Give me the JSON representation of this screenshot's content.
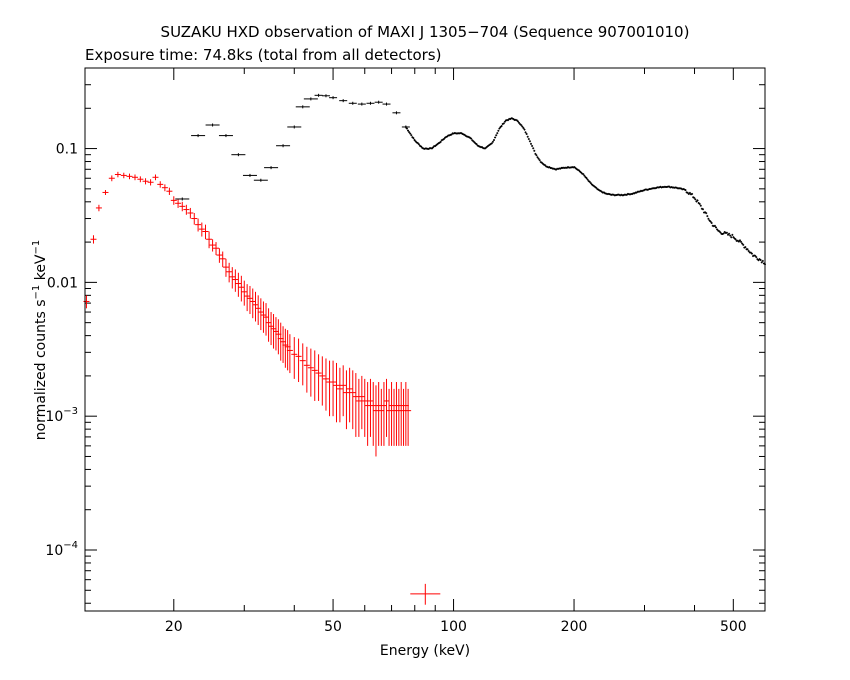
{
  "chart_data": {
    "type": "scatter",
    "title": "SUZAKU HXD observation of MAXI J 1305−704 (Sequence 907001010)",
    "subtitle": "Exposure time: 74.8ks (total from all detectors)",
    "xlabel": "Energy (keV)",
    "ylabel": {
      "text1": "normalized counts s",
      "sup1": "−1",
      "text2": " keV",
      "sup2": "−1"
    },
    "xscale": "log",
    "yscale": "log",
    "xlim": [
      12,
      600
    ],
    "ylim": [
      3.5e-05,
      0.4
    ],
    "x_ticks": [
      {
        "value": 20,
        "label": "20"
      },
      {
        "value": 50,
        "label": "50"
      },
      {
        "value": 100,
        "label": "100"
      },
      {
        "value": 200,
        "label": "200"
      },
      {
        "value": 500,
        "label": "500"
      }
    ],
    "y_ticks": [
      {
        "value": 0.1,
        "label": "0.1",
        "base": "",
        "exp": ""
      },
      {
        "value": 0.01,
        "label": "0.01",
        "base": "",
        "exp": ""
      },
      {
        "value": 0.001,
        "label": "",
        "base": "10",
        "exp": "−3"
      },
      {
        "value": 0.0001,
        "label": "",
        "base": "10",
        "exp": "−4"
      }
    ],
    "series": [
      {
        "color": "#ff0000",
        "points": [
          [
            12.1,
            0.0072,
            0.0008
          ],
          [
            12.6,
            0.021,
            0.0015
          ],
          [
            13.0,
            0.036,
            0.002
          ],
          [
            13.5,
            0.047,
            0.002
          ],
          [
            14.0,
            0.06,
            0.003
          ],
          [
            14.5,
            0.064,
            0.003
          ],
          [
            15.0,
            0.063,
            0.003
          ],
          [
            15.5,
            0.062,
            0.003
          ],
          [
            16.0,
            0.061,
            0.003
          ],
          [
            16.5,
            0.059,
            0.003
          ],
          [
            17.0,
            0.057,
            0.003
          ],
          [
            17.5,
            0.056,
            0.003
          ],
          [
            18.0,
            0.061,
            0.003
          ],
          [
            18.5,
            0.054,
            0.003
          ],
          [
            19.0,
            0.051,
            0.003
          ],
          [
            19.5,
            0.048,
            0.003
          ],
          [
            20.0,
            0.041,
            0.003
          ],
          [
            20.5,
            0.039,
            0.003
          ],
          [
            21.0,
            0.037,
            0.003
          ],
          [
            21.5,
            0.035,
            0.003
          ],
          [
            22.0,
            0.033,
            0.003
          ],
          [
            22.5,
            0.03,
            0.003
          ],
          [
            23.0,
            0.027,
            0.003
          ],
          [
            23.5,
            0.025,
            0.003
          ],
          [
            24.0,
            0.024,
            0.003
          ],
          [
            24.5,
            0.021,
            0.003
          ],
          [
            25.0,
            0.019,
            0.002
          ],
          [
            25.5,
            0.018,
            0.002
          ],
          [
            26.0,
            0.016,
            0.002
          ],
          [
            26.5,
            0.015,
            0.002
          ],
          [
            27.0,
            0.013,
            0.002
          ],
          [
            27.5,
            0.012,
            0.002
          ],
          [
            28.0,
            0.011,
            0.002
          ],
          [
            28.5,
            0.0105,
            0.002
          ],
          [
            29.0,
            0.0098,
            0.002
          ],
          [
            29.5,
            0.0092,
            0.002
          ],
          [
            30.0,
            0.0085,
            0.0018
          ],
          [
            30.5,
            0.0079,
            0.0018
          ],
          [
            31.0,
            0.0076,
            0.0018
          ],
          [
            31.5,
            0.0072,
            0.0018
          ],
          [
            32.0,
            0.0068,
            0.0017
          ],
          [
            32.5,
            0.0064,
            0.0016
          ],
          [
            33.0,
            0.006,
            0.0016
          ],
          [
            33.5,
            0.0057,
            0.0015
          ],
          [
            34.0,
            0.0055,
            0.0015
          ],
          [
            34.5,
            0.005,
            0.0014
          ],
          [
            35.0,
            0.0047,
            0.0013
          ],
          [
            35.5,
            0.0045,
            0.0013
          ],
          [
            36.0,
            0.0043,
            0.0012
          ],
          [
            36.5,
            0.0041,
            0.0012
          ],
          [
            37.0,
            0.0038,
            0.0012
          ],
          [
            37.5,
            0.0036,
            0.0011
          ],
          [
            38.0,
            0.0034,
            0.0011
          ],
          [
            38.5,
            0.0033,
            0.0011
          ],
          [
            39.0,
            0.0031,
            0.001
          ],
          [
            40.0,
            0.0029,
            0.001
          ],
          [
            41.0,
            0.0028,
            0.001
          ],
          [
            42.0,
            0.0026,
            0.0009
          ],
          [
            43.0,
            0.0024,
            0.0009
          ],
          [
            44.0,
            0.0023,
            0.0009
          ],
          [
            45.0,
            0.0022,
            0.0009
          ],
          [
            46.0,
            0.0021,
            0.0008
          ],
          [
            47.0,
            0.002,
            0.0008
          ],
          [
            48.0,
            0.0019,
            0.0008
          ],
          [
            49.0,
            0.0018,
            0.0008
          ],
          [
            50.0,
            0.0018,
            0.0008
          ],
          [
            51.0,
            0.0017,
            0.0008
          ],
          [
            52.0,
            0.0016,
            0.0007
          ],
          [
            53.0,
            0.0017,
            0.0007
          ],
          [
            54.0,
            0.0015,
            0.0007
          ],
          [
            55.0,
            0.0016,
            0.0007
          ],
          [
            56.0,
            0.0015,
            0.0007
          ],
          [
            57.0,
            0.0014,
            0.0007
          ],
          [
            58.0,
            0.0013,
            0.0006
          ],
          [
            59.0,
            0.0014,
            0.0006
          ],
          [
            60.0,
            0.0013,
            0.0006
          ],
          [
            61.0,
            0.0012,
            0.0006
          ],
          [
            62.0,
            0.0013,
            0.0006
          ],
          [
            63.0,
            0.0012,
            0.0006
          ],
          [
            64.0,
            0.0011,
            0.0006
          ],
          [
            65.0,
            0.0012,
            0.0006
          ],
          [
            66.0,
            0.0011,
            0.0005
          ],
          [
            67.0,
            0.0012,
            0.0006
          ],
          [
            68.0,
            0.0013,
            0.0006
          ],
          [
            69.0,
            0.0011,
            0.0005
          ],
          [
            70.0,
            0.0012,
            0.0006
          ],
          [
            71.0,
            0.0011,
            0.0005
          ],
          [
            72.0,
            0.0012,
            0.0006
          ],
          [
            73.0,
            0.0011,
            0.0005
          ],
          [
            74.0,
            0.0012,
            0.0006
          ],
          [
            75.0,
            0.0011,
            0.0005
          ],
          [
            76.0,
            0.0012,
            0.0006
          ],
          [
            77.0,
            0.0011,
            0.0005
          ],
          [
            85.0,
            4.7e-05,
            8e-06
          ]
        ]
      },
      {
        "color": "#000000",
        "points": [
          [
            21.0,
            0.042
          ],
          [
            23.0,
            0.125
          ],
          [
            25.0,
            0.15
          ],
          [
            27.0,
            0.125
          ],
          [
            29.0,
            0.09
          ],
          [
            31.0,
            0.063
          ],
          [
            33.0,
            0.058
          ],
          [
            35.0,
            0.072
          ],
          [
            37.5,
            0.105
          ],
          [
            40.0,
            0.145
          ],
          [
            42.0,
            0.205
          ],
          [
            44.0,
            0.235
          ],
          [
            46.0,
            0.25
          ],
          [
            48.0,
            0.248
          ],
          [
            50.0,
            0.24
          ],
          [
            53.0,
            0.228
          ],
          [
            56.0,
            0.218
          ],
          [
            59.0,
            0.215
          ],
          [
            62.0,
            0.218
          ],
          [
            65.0,
            0.222
          ],
          [
            68.0,
            0.215
          ],
          [
            72.0,
            0.185
          ],
          [
            76.0,
            0.145
          ],
          [
            80.0,
            0.115
          ],
          [
            84.0,
            0.1
          ],
          [
            88.0,
            0.1
          ],
          [
            92.0,
            0.11
          ],
          [
            96.0,
            0.123
          ],
          [
            100.0,
            0.13
          ],
          [
            105.0,
            0.13
          ],
          [
            110.0,
            0.12
          ],
          [
            115.0,
            0.105
          ],
          [
            120.0,
            0.1
          ],
          [
            125.0,
            0.11
          ],
          [
            130.0,
            0.14
          ],
          [
            135.0,
            0.162
          ],
          [
            140.0,
            0.168
          ],
          [
            145.0,
            0.16
          ],
          [
            150.0,
            0.14
          ],
          [
            155.0,
            0.115
          ],
          [
            160.0,
            0.092
          ],
          [
            165.0,
            0.08
          ],
          [
            170.0,
            0.074
          ],
          [
            180.0,
            0.07
          ],
          [
            190.0,
            0.072
          ],
          [
            200.0,
            0.073
          ],
          [
            210.0,
            0.065
          ],
          [
            220.0,
            0.055
          ],
          [
            230.0,
            0.049
          ],
          [
            240.0,
            0.046
          ],
          [
            250.0,
            0.045
          ],
          [
            265.0,
            0.045
          ],
          [
            280.0,
            0.046
          ],
          [
            300.0,
            0.049
          ],
          [
            320.0,
            0.051
          ],
          [
            340.0,
            0.052
          ],
          [
            360.0,
            0.051
          ],
          [
            380.0,
            0.049
          ],
          [
            400.0,
            0.043
          ],
          [
            420.0,
            0.035
          ],
          [
            440.0,
            0.028
          ],
          [
            460.0,
            0.024
          ],
          [
            480.0,
            0.023
          ],
          [
            500.0,
            0.022
          ],
          [
            520.0,
            0.02
          ],
          [
            540.0,
            0.018
          ],
          [
            560.0,
            0.016
          ],
          [
            580.0,
            0.015
          ],
          [
            600.0,
            0.014
          ]
        ]
      }
    ]
  }
}
